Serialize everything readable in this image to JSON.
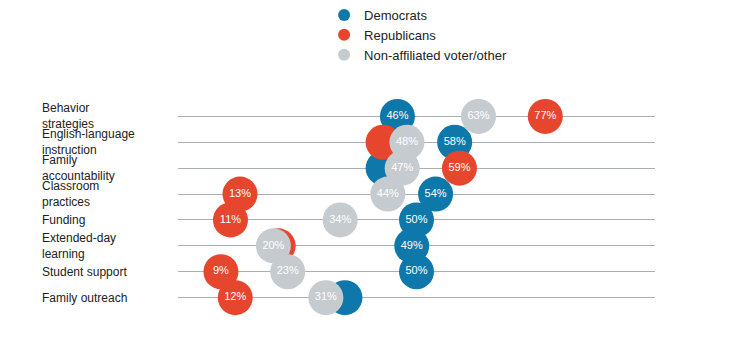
{
  "chart_data": {
    "type": "dot",
    "orientation": "horizontal",
    "categories": [
      "Behavior strategies",
      "English-language instruction",
      "Family accountability",
      "Classroom practices",
      "Funding",
      "Extended-day learning",
      "Student support",
      "Family outreach"
    ],
    "series": [
      {
        "name": "Democrats",
        "color": "#0f78aa",
        "values": [
          46,
          58,
          43,
          54,
          50,
          49,
          50,
          35
        ],
        "value_labels": [
          "46%",
          "58%",
          null,
          "54%",
          "50%",
          "49%",
          "50%",
          null
        ]
      },
      {
        "name": "Republicans",
        "color": "#e5462d",
        "values": [
          77,
          43,
          59,
          13,
          11,
          21,
          9,
          12
        ],
        "value_labels": [
          "77%",
          null,
          "59%",
          "13%",
          "11%",
          null,
          "9%",
          "12%"
        ]
      },
      {
        "name": "Non-affiliated voter/other",
        "color": "#c6cbd0",
        "values": [
          63,
          48,
          47,
          44,
          34,
          20,
          23,
          31
        ],
        "value_labels": [
          "63%",
          "48%",
          "47%",
          "44%",
          "34%",
          "20%",
          "23%",
          "31%"
        ]
      }
    ],
    "xlim": [
      0,
      100
    ],
    "tick_labels": false,
    "grid": true,
    "legend": "top",
    "data_labels": true,
    "marker": "circle"
  }
}
